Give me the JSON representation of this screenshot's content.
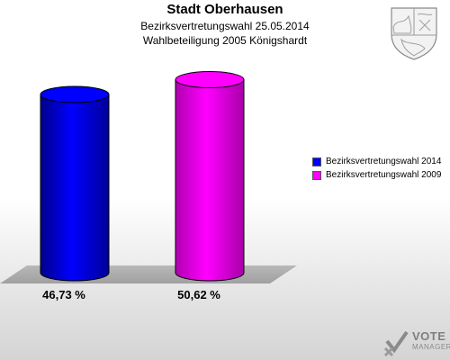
{
  "header": {
    "title": "Stadt Oberhausen",
    "subtitle": "Bezirksvertretungswahl 25.05.2014",
    "subtitle2": "Wahlbeteiligung 2005 Königshardt"
  },
  "chart_data": {
    "type": "bar",
    "categories": [
      "Bezirksvertretungswahl 2014",
      "Bezirksvertretungswahl 2009"
    ],
    "values": [
      46.73,
      50.62
    ],
    "value_labels": [
      "46,73 %",
      "50,62 %"
    ],
    "ylim": [
      0,
      55
    ],
    "colors": [
      "#0000ff",
      "#ff00ff"
    ],
    "legend_position": "right",
    "grid": false
  },
  "legend": {
    "items": [
      {
        "label": "Bezirksvertretungswahl 2014",
        "color": "#0000ff"
      },
      {
        "label": "Bezirksvertretungswahl 2009",
        "color": "#ff00ff"
      }
    ]
  },
  "logo": {
    "line1": "VOTE",
    "line2": "MANAGER",
    "icon": "vote-manager-logo-icon"
  },
  "crest": {
    "icon": "coat-of-arms-icon"
  }
}
